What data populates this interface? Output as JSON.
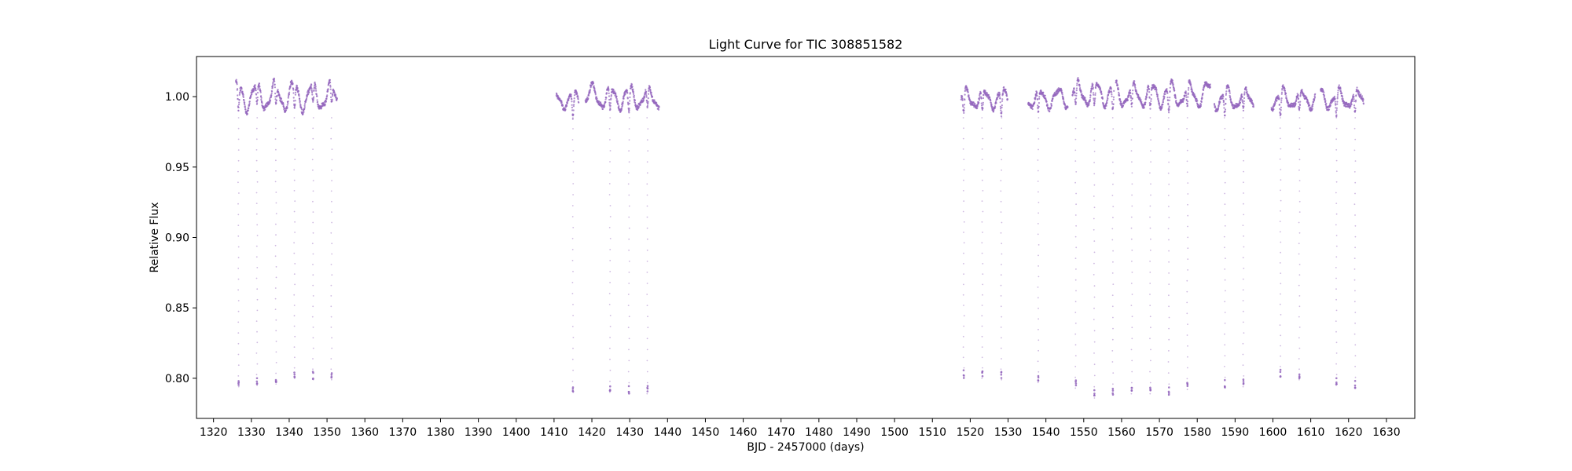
{
  "chart_data": {
    "type": "scatter",
    "title": "Light Curve for TIC 308851582",
    "xlabel": "BJD - 2457000 (days)",
    "ylabel": "Relative Flux",
    "xlim": [
      1315.5,
      1637.5
    ],
    "ylim": [
      0.7715,
      1.0285
    ],
    "x_ticks": [
      1320,
      1330,
      1340,
      1350,
      1360,
      1370,
      1380,
      1390,
      1400,
      1410,
      1420,
      1430,
      1440,
      1450,
      1460,
      1470,
      1480,
      1490,
      1500,
      1510,
      1520,
      1530,
      1540,
      1550,
      1560,
      1570,
      1580,
      1590,
      1600,
      1610,
      1620,
      1630
    ],
    "y_ticks": [
      0.8,
      0.85,
      0.9,
      0.95,
      1.0
    ],
    "y_tick_labels": [
      "0.80",
      "0.85",
      "0.90",
      "0.95",
      "1.00"
    ],
    "grid": false,
    "marker_color": "#9467bd",
    "series": [
      {
        "segments": [
          {
            "x": [
              1325.9,
              1352.7
            ],
            "baseline": 1.001,
            "variability": 0.018
          },
          {
            "x": [
              1410.6,
              1416.5
            ],
            "baseline": 0.998,
            "variability": 0.01
          },
          {
            "x": [
              1418.3,
              1437.8
            ],
            "baseline": 1.0,
            "variability": 0.014
          },
          {
            "x": [
              1517.6,
              1529.9
            ],
            "baseline": 0.999,
            "variability": 0.012
          },
          {
            "x": [
              1535.3,
              1545.8
            ],
            "baseline": 0.999,
            "variability": 0.012
          },
          {
            "x": [
              1547.0,
              1558.0
            ],
            "baseline": 1.003,
            "variability": 0.015
          },
          {
            "x": [
              1558.5,
              1583.5
            ],
            "baseline": 1.002,
            "variability": 0.015
          },
          {
            "x": [
              1584.5,
              1594.9
            ],
            "baseline": 0.999,
            "variability": 0.013
          },
          {
            "x": [
              1599.6,
              1611.2
            ],
            "baseline": 0.999,
            "variability": 0.012
          },
          {
            "x": [
              1612.6,
              1624.0
            ],
            "baseline": 0.999,
            "variability": 0.012
          }
        ],
        "eclipses": [
          {
            "x": 1326.6,
            "min": 0.794
          },
          {
            "x": 1331.5,
            "min": 0.795
          },
          {
            "x": 1336.5,
            "min": 0.796
          },
          {
            "x": 1341.4,
            "min": 0.8
          },
          {
            "x": 1346.3,
            "min": 0.799
          },
          {
            "x": 1351.2,
            "min": 0.799
          },
          {
            "x": 1415.0,
            "min": 0.79
          },
          {
            "x": 1424.8,
            "min": 0.79
          },
          {
            "x": 1429.8,
            "min": 0.789
          },
          {
            "x": 1434.7,
            "min": 0.789
          },
          {
            "x": 1518.3,
            "min": 0.8
          },
          {
            "x": 1523.2,
            "min": 0.8
          },
          {
            "x": 1528.2,
            "min": 0.799
          },
          {
            "x": 1538.0,
            "min": 0.797
          },
          {
            "x": 1547.9,
            "min": 0.793
          },
          {
            "x": 1552.8,
            "min": 0.786
          },
          {
            "x": 1557.7,
            "min": 0.788
          },
          {
            "x": 1562.7,
            "min": 0.789
          },
          {
            "x": 1567.6,
            "min": 0.789
          },
          {
            "x": 1572.5,
            "min": 0.788
          },
          {
            "x": 1577.4,
            "min": 0.792
          },
          {
            "x": 1587.3,
            "min": 0.793
          },
          {
            "x": 1592.2,
            "min": 0.794
          },
          {
            "x": 1602.0,
            "min": 0.801
          },
          {
            "x": 1607.0,
            "min": 0.799
          },
          {
            "x": 1616.8,
            "min": 0.795
          },
          {
            "x": 1621.7,
            "min": 0.793
          }
        ]
      }
    ]
  }
}
